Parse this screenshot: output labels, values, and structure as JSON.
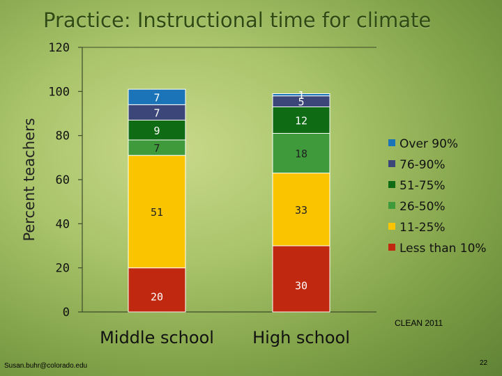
{
  "slide": {
    "title": "Practice: Instructional time for climate",
    "footer_email": "Susan.buhr@colorado.edu",
    "page_number": "22",
    "credit": "CLEAN 2011"
  },
  "chart_data": {
    "type": "bar",
    "stacked": true,
    "categories": [
      "Middle school",
      "High school"
    ],
    "ylabel": "Percent teachers",
    "ylim": [
      0,
      120
    ],
    "yticks": [
      0,
      20,
      40,
      60,
      80,
      100,
      120
    ],
    "grid": false,
    "legend_position": "right",
    "series": [
      {
        "name": "Less than 10%",
        "values": [
          20,
          30
        ],
        "color": "#c0280f"
      },
      {
        "name": "11-25%",
        "values": [
          51,
          33
        ],
        "color": "#fbc400"
      },
      {
        "name": "26-50%",
        "values": [
          7,
          18
        ],
        "color": "#3e9a3b"
      },
      {
        "name": "51-75%",
        "values": [
          9,
          12
        ],
        "color": "#106b15"
      },
      {
        "name": "76-90%",
        "values": [
          7,
          5
        ],
        "color": "#3c4678"
      },
      {
        "name": "Over 90%",
        "values": [
          7,
          1
        ],
        "color": "#1b74b8"
      }
    ]
  }
}
